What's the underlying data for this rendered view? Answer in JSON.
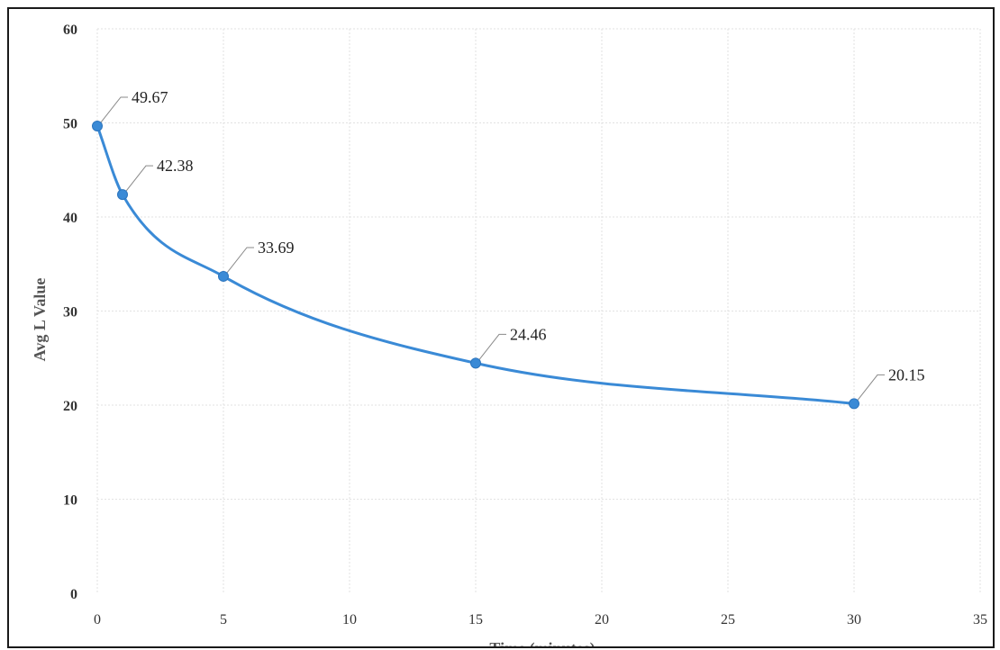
{
  "chart_data": {
    "type": "line",
    "title": "",
    "xlabel": "Time (minutes)",
    "ylabel": "Avg L Value",
    "xlim": [
      0,
      35
    ],
    "ylim": [
      0,
      60
    ],
    "x_ticks": [
      0,
      5,
      10,
      15,
      20,
      25,
      30,
      35
    ],
    "y_ticks": [
      0,
      10,
      20,
      30,
      40,
      50,
      60
    ],
    "grid": true,
    "smooth": true,
    "line_color": "#3a8ad6",
    "series": [
      {
        "x": [
          0,
          1,
          5,
          15,
          30
        ],
        "values": [
          49.67,
          42.38,
          33.69,
          24.46,
          20.15
        ],
        "labels": [
          "49.67",
          "42.38",
          "33.69",
          "24.46",
          "20.15"
        ]
      }
    ]
  }
}
